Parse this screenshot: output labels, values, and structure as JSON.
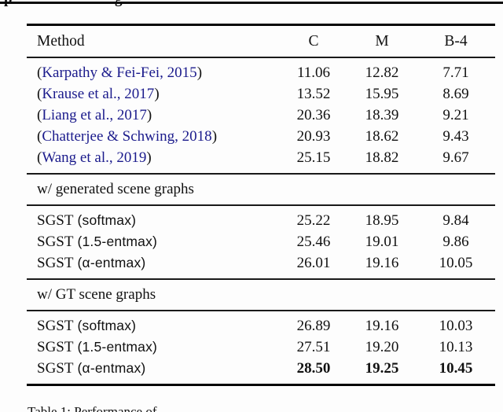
{
  "page": {
    "background": "#fdfdfd",
    "top_fragment": {
      "glyph_left": "p",
      "glyph_right": "g"
    }
  },
  "table": {
    "paren_open": "(",
    "paren_close": ")",
    "citation_color": "#1b1b8c",
    "header": {
      "method": "Method",
      "c": "C",
      "m": "M",
      "b4": "B-4"
    },
    "sections": [
      {
        "rows": [
          {
            "cite": "Karpathy & Fei-Fei, 2015",
            "c": "11.06",
            "m": "12.82",
            "b4": "7.71"
          },
          {
            "cite": "Krause et al., 2017",
            "c": "13.52",
            "m": "15.95",
            "b4": "8.69"
          },
          {
            "cite": "Liang et al., 2017",
            "c": "20.36",
            "m": "18.39",
            "b4": "9.21"
          },
          {
            "cite": "Chatterjee & Schwing, 2018",
            "c": "20.93",
            "m": "18.62",
            "b4": "9.43"
          },
          {
            "cite": "Wang et al., 2019",
            "c": "25.15",
            "m": "18.82",
            "b4": "9.67"
          }
        ]
      },
      {
        "label": "w/ generated scene graphs"
      },
      {
        "rows": [
          {
            "model": "SGST",
            "variant": "(softmax)",
            "c": "25.22",
            "m": "18.95",
            "b4": "9.84"
          },
          {
            "model": "SGST",
            "variant": "(1.5-entmax)",
            "c": "25.46",
            "m": "19.01",
            "b4": "9.86"
          },
          {
            "model": "SGST",
            "variant": "(α-entmax)",
            "c": "26.01",
            "m": "19.16",
            "b4": "10.05"
          }
        ]
      },
      {
        "label": "w/ GT scene graphs"
      },
      {
        "rows": [
          {
            "model": "SGST",
            "variant": "(softmax)",
            "c": "26.89",
            "m": "19.16",
            "b4": "10.03"
          },
          {
            "model": "SGST",
            "variant": "(1.5-entmax)",
            "c": "27.51",
            "m": "19.20",
            "b4": "10.13"
          },
          {
            "model": "SGST",
            "variant": "(α-entmax)",
            "c": "28.50",
            "m": "19.25",
            "b4": "10.45",
            "bold": true
          }
        ]
      }
    ]
  },
  "caption": {
    "label": "Table 1:",
    "text_partial": "Performance of"
  }
}
